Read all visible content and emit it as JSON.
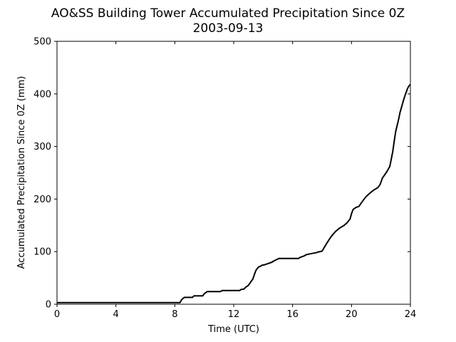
{
  "chart_data": {
    "type": "line",
    "title": "AO&SS Building Tower Accumulated Precipitation Since 0Z",
    "subtitle": "2003-09-13",
    "xlabel": "Time (UTC)",
    "ylabel": "Accumulated Precipitation Since 0Z (mm)",
    "xlim": [
      0,
      24
    ],
    "ylim": [
      0,
      500
    ],
    "xticks": [
      0,
      4,
      8,
      12,
      16,
      20,
      24
    ],
    "yticks": [
      0,
      100,
      200,
      300,
      400,
      500
    ],
    "grid": false,
    "line_color": "#000000",
    "series": [
      {
        "x": [
          0,
          8.35,
          8.45,
          8.55,
          8.65,
          9.2,
          9.3,
          9.9,
          10.0,
          10.1,
          10.2,
          11.1,
          11.2,
          12.4,
          12.5,
          12.7,
          12.8,
          13.0,
          13.1,
          13.2,
          13.3,
          13.4,
          13.5,
          13.6,
          13.7,
          13.8,
          13.9,
          14.1,
          14.4,
          14.6,
          14.7,
          14.85,
          15.0,
          15.05,
          16.4,
          16.5,
          16.8,
          16.9,
          17.2,
          17.6,
          17.7,
          18.0,
          18.3,
          18.6,
          18.9,
          19.2,
          19.5,
          19.7,
          19.9,
          20.0,
          20.1,
          20.3,
          20.5,
          20.6,
          20.8,
          21.0,
          21.2,
          21.5,
          21.8,
          21.95,
          22.1,
          22.2,
          22.4,
          22.6,
          22.8,
          22.9,
          23.0,
          23.1,
          23.2,
          23.3,
          23.4,
          23.5,
          23.6,
          23.7,
          23.8,
          23.9,
          24.0
        ],
        "y": [
          3,
          3,
          8,
          11,
          13,
          13,
          16,
          16,
          20,
          22,
          24,
          24,
          26,
          26,
          28,
          29,
          32,
          36,
          40,
          44,
          48,
          56,
          64,
          68,
          71,
          72,
          74,
          75,
          78,
          80,
          82,
          84,
          86,
          87,
          87,
          89,
          92,
          94,
          96,
          98,
          99,
          101,
          115,
          128,
          138,
          145,
          150,
          155,
          162,
          172,
          180,
          184,
          186,
          190,
          198,
          205,
          210,
          217,
          222,
          228,
          240,
          244,
          252,
          262,
          290,
          310,
          328,
          340,
          352,
          365,
          375,
          385,
          394,
          402,
          410,
          415,
          418
        ]
      }
    ]
  }
}
